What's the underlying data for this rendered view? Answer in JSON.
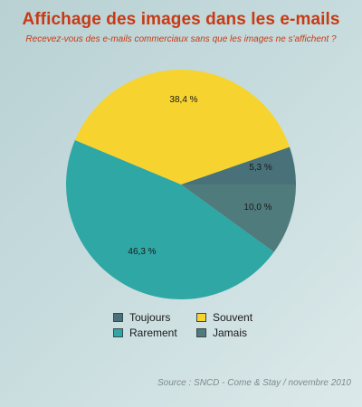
{
  "header": {
    "title": "Affichage des images dans les e-mails",
    "subtitle": "Recevez-vous des e-mails commerciaux sans que les images ne s'affichent ?"
  },
  "chart_data": {
    "type": "pie",
    "title": "Affichage des images dans les e-mails",
    "subtitle": "Recevez-vous des e-mails commerciaux sans que les images ne s'affichent ?",
    "categories": [
      "Toujours",
      "Souvent",
      "Rarement",
      "Jamais"
    ],
    "values": [
      5.3,
      38.4,
      46.3,
      10.0
    ],
    "labels": [
      "5,3 %",
      "38,4 %",
      "46,3 %",
      "10,0 %"
    ],
    "colors": [
      "#487179",
      "#f6d32e",
      "#2ea7a5",
      "#4f7b7c"
    ],
    "legend_position": "bottom",
    "source": "Source : SNCD - Come & Stay / novembre 2010"
  },
  "legend": {
    "items": [
      {
        "label": "Toujours",
        "color": "#487179"
      },
      {
        "label": "Souvent",
        "color": "#f6d32e"
      },
      {
        "label": "Rarement",
        "color": "#2ea7a5"
      },
      {
        "label": "Jamais",
        "color": "#4f7b7c"
      }
    ]
  },
  "footer": {
    "source": "Source : SNCD - Come & Stay / novembre 2010"
  }
}
